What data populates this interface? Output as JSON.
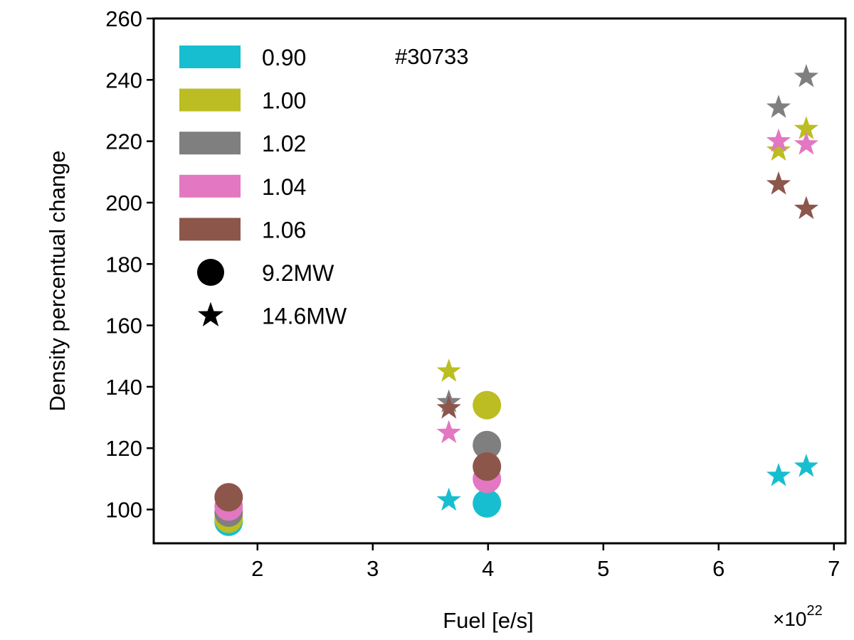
{
  "chart_data": {
    "type": "scatter",
    "title": "",
    "annotation": "#30733",
    "xlabel": "Fuel [e/s]",
    "ylabel": "Density percentual change",
    "x_multiplier": "×10",
    "x_exponent": "22",
    "xlim": [
      1.1,
      7.1
    ],
    "ylim": [
      89,
      260
    ],
    "xticks": [
      2,
      3,
      4,
      5,
      6,
      7
    ],
    "yticks": [
      100,
      120,
      140,
      160,
      180,
      200,
      220,
      240,
      260
    ],
    "grid": false,
    "legend_placement": "top-left",
    "series": [
      {
        "name": "0.90",
        "color": "#17becf",
        "points": [
          {
            "x": 1.75,
            "y": 96,
            "marker": "circle"
          },
          {
            "x": 3.66,
            "y": 103,
            "marker": "star"
          },
          {
            "x": 3.99,
            "y": 102,
            "marker": "circle"
          },
          {
            "x": 6.52,
            "y": 111,
            "marker": "star"
          },
          {
            "x": 6.76,
            "y": 114,
            "marker": "star"
          }
        ]
      },
      {
        "name": "1.00",
        "color": "#bcbd22",
        "points": [
          {
            "x": 1.75,
            "y": 97,
            "marker": "circle"
          },
          {
            "x": 3.66,
            "y": 145,
            "marker": "star"
          },
          {
            "x": 3.99,
            "y": 134,
            "marker": "circle"
          },
          {
            "x": 6.52,
            "y": 217,
            "marker": "star"
          },
          {
            "x": 6.76,
            "y": 224,
            "marker": "star"
          }
        ]
      },
      {
        "name": "1.02",
        "color": "#7f7f7f",
        "points": [
          {
            "x": 1.75,
            "y": 99,
            "marker": "circle"
          },
          {
            "x": 3.66,
            "y": 135,
            "marker": "star"
          },
          {
            "x": 3.99,
            "y": 121,
            "marker": "circle"
          },
          {
            "x": 6.52,
            "y": 231,
            "marker": "star"
          },
          {
            "x": 6.76,
            "y": 241,
            "marker": "star"
          }
        ]
      },
      {
        "name": "1.04",
        "color": "#e377c2",
        "points": [
          {
            "x": 1.75,
            "y": 101,
            "marker": "circle"
          },
          {
            "x": 3.66,
            "y": 125,
            "marker": "star"
          },
          {
            "x": 3.99,
            "y": 110,
            "marker": "circle"
          },
          {
            "x": 6.52,
            "y": 220,
            "marker": "star"
          },
          {
            "x": 6.76,
            "y": 219,
            "marker": "star"
          }
        ]
      },
      {
        "name": "1.06",
        "color": "#8c564b",
        "points": [
          {
            "x": 1.75,
            "y": 104,
            "marker": "circle"
          },
          {
            "x": 3.66,
            "y": 133,
            "marker": "star"
          },
          {
            "x": 3.99,
            "y": 114,
            "marker": "circle"
          },
          {
            "x": 6.52,
            "y": 206,
            "marker": "star"
          },
          {
            "x": 6.76,
            "y": 198,
            "marker": "star"
          }
        ]
      }
    ],
    "marker_legend": [
      {
        "marker": "circle",
        "label": "9.2MW"
      },
      {
        "marker": "star",
        "label": "14.6MW"
      }
    ]
  }
}
